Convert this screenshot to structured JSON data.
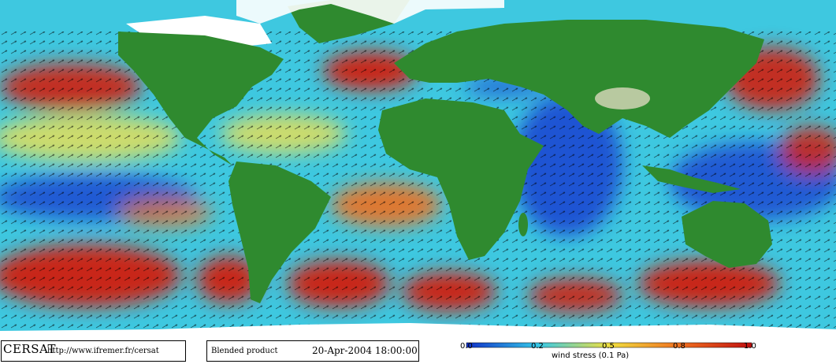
{
  "footer": {
    "brand": "CERSAT",
    "url": "http://www.ifremer.fr/cersat",
    "product": "Blended product",
    "datetime": "20-Apr-2004 18:00:00"
  },
  "legend": {
    "title": "wind stress (0.1 Pa)",
    "ticks": [
      "0.0",
      "0.2",
      "0.5",
      "0.8",
      "1.0"
    ],
    "colors": {
      "low": "#1030c8",
      "mid_low": "#35c8e8",
      "mid": "#f0e040",
      "mid_high": "#f07020",
      "high": "#c01010"
    }
  },
  "map_colors": {
    "land": "#2f8a2f",
    "land_light": "#7ab86a",
    "ice": "#ffffff",
    "ocean_blue": "#1a3fd0",
    "ocean_cyan": "#3ec8e0",
    "ocean_yellow": "#f0e050",
    "ocean_red": "#d02010"
  }
}
